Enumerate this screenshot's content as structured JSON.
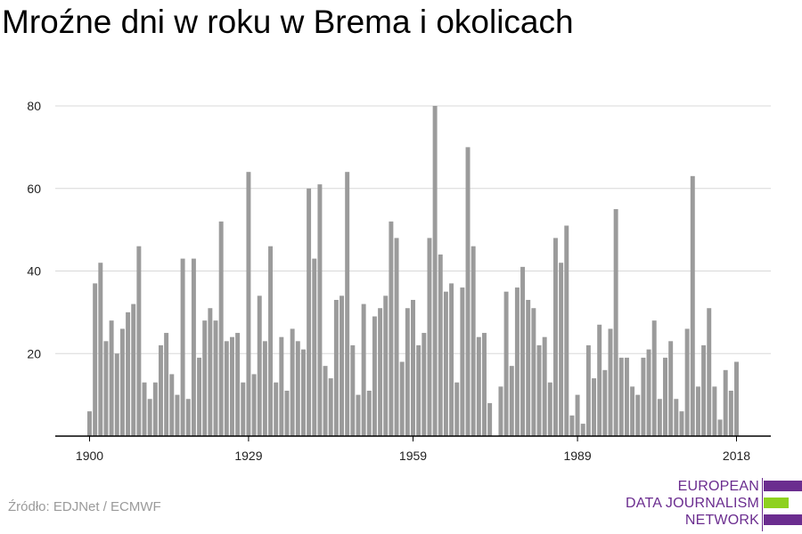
{
  "title": "Mroźne dni w roku w Brema i okolicach",
  "source": "Źródło: EDJNet / ECMWF",
  "logo": {
    "lines": [
      "EUROPEAN",
      "DATA JOURNALISM",
      "NETWORK"
    ],
    "text_color": "#6b2d8f",
    "bar_colors": [
      "#6b2d8f",
      "#8ed11f",
      "#6b2d8f"
    ]
  },
  "colors": {
    "bar": "#9b9b9b",
    "grid": "#d8d8d8",
    "axis": "#000000"
  },
  "chart_data": {
    "type": "bar",
    "title": "Mroźne dni w roku w Brema i okolicach",
    "xlabel": "",
    "ylabel": "",
    "ylim": [
      0,
      80
    ],
    "grid": true,
    "y_ticks": [
      20,
      40,
      60,
      80
    ],
    "x_ticks": [
      1900,
      1929,
      1959,
      1989,
      2018
    ],
    "categories": [
      1900,
      1901,
      1902,
      1903,
      1904,
      1905,
      1906,
      1907,
      1908,
      1909,
      1910,
      1911,
      1912,
      1913,
      1914,
      1915,
      1916,
      1917,
      1918,
      1919,
      1920,
      1921,
      1922,
      1923,
      1924,
      1925,
      1926,
      1927,
      1928,
      1929,
      1930,
      1931,
      1932,
      1933,
      1934,
      1935,
      1936,
      1937,
      1938,
      1939,
      1940,
      1941,
      1942,
      1943,
      1944,
      1945,
      1946,
      1947,
      1948,
      1949,
      1950,
      1951,
      1952,
      1953,
      1954,
      1955,
      1956,
      1957,
      1958,
      1959,
      1960,
      1961,
      1962,
      1963,
      1964,
      1965,
      1966,
      1967,
      1968,
      1969,
      1970,
      1971,
      1972,
      1973,
      1974,
      1975,
      1976,
      1977,
      1978,
      1979,
      1980,
      1981,
      1982,
      1983,
      1984,
      1985,
      1986,
      1987,
      1988,
      1989,
      1990,
      1991,
      1992,
      1993,
      1994,
      1995,
      1996,
      1997,
      1998,
      1999,
      2000,
      2001,
      2002,
      2003,
      2004,
      2005,
      2006,
      2007,
      2008,
      2009,
      2010,
      2011,
      2012,
      2013,
      2014,
      2015,
      2016,
      2017,
      2018
    ],
    "values": [
      6,
      37,
      42,
      23,
      28,
      20,
      26,
      30,
      32,
      46,
      13,
      9,
      13,
      22,
      25,
      15,
      10,
      43,
      9,
      43,
      19,
      28,
      31,
      28,
      52,
      23,
      24,
      25,
      13,
      64,
      15,
      34,
      23,
      46,
      13,
      24,
      11,
      26,
      23,
      21,
      60,
      43,
      61,
      17,
      14,
      33,
      34,
      64,
      22,
      10,
      32,
      11,
      29,
      31,
      34,
      52,
      48,
      18,
      31,
      33,
      22,
      25,
      48,
      80,
      44,
      35,
      37,
      13,
      36,
      70,
      46,
      24,
      25,
      8,
      0,
      12,
      35,
      17,
      36,
      41,
      33,
      31,
      22,
      24,
      13,
      48,
      42,
      51,
      5,
      10,
      3,
      22,
      14,
      27,
      16,
      26,
      55,
      19,
      19,
      12,
      10,
      19,
      21,
      28,
      9,
      19,
      23,
      9,
      6,
      26,
      63,
      12,
      22,
      31,
      12,
      4,
      16,
      11,
      18
    ]
  }
}
